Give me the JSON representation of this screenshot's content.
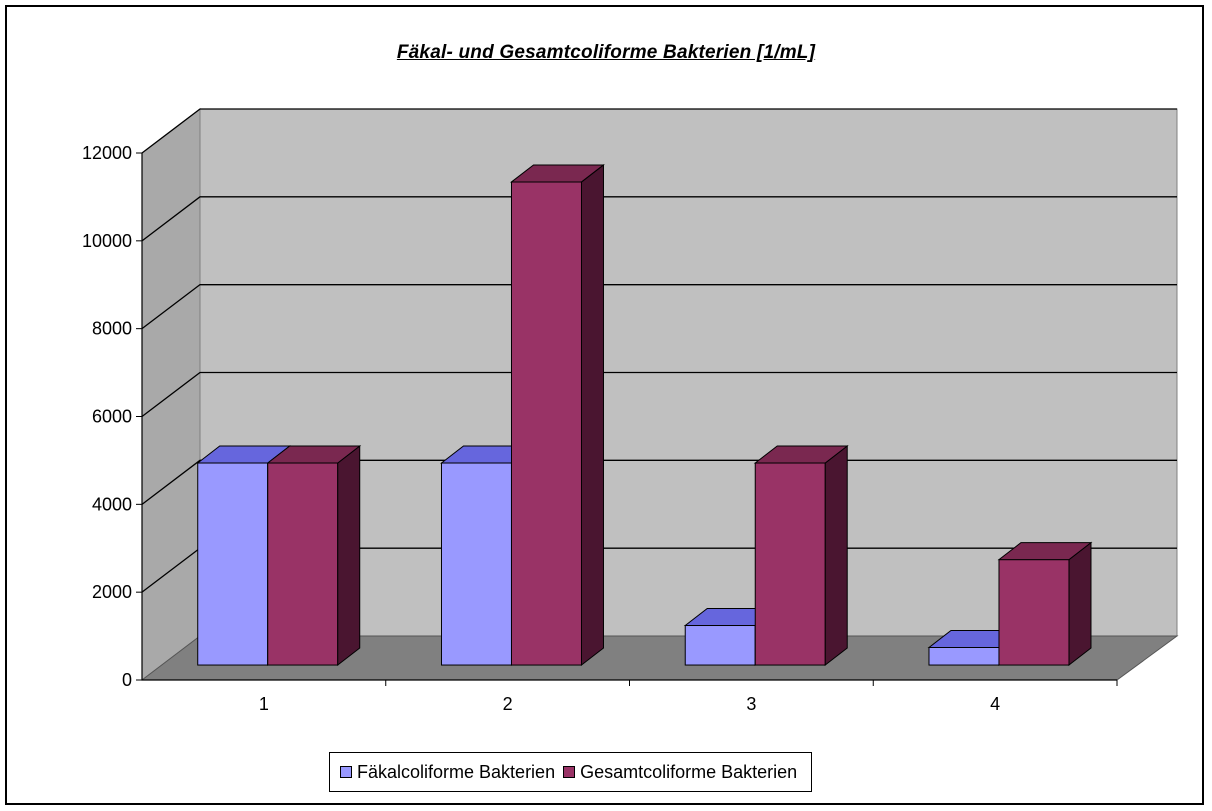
{
  "chart_data": {
    "type": "bar",
    "title": "Fäkal- und Gesamtcoliforme Bakterien [1/mL]",
    "categories": [
      "1",
      "2",
      "3",
      "4"
    ],
    "series": [
      {
        "name": "Fäkalcoliforme Bakterien",
        "values": [
          4600,
          4600,
          900,
          400
        ],
        "color": "#9999ff",
        "side_color": "#3c3c99",
        "top_color": "#6666dd"
      },
      {
        "name": "Gesamtcoliforme Bakterien",
        "values": [
          4600,
          11000,
          4600,
          2400
        ],
        "color": "#993366",
        "side_color": "#4a1530",
        "top_color": "#7a2850"
      }
    ],
    "ylim": [
      0,
      12000
    ],
    "y_ticks": [
      "0",
      "2000",
      "4000",
      "6000",
      "8000",
      "10000",
      "12000"
    ],
    "grid": true,
    "legend_position": "bottom",
    "three_d": true
  }
}
